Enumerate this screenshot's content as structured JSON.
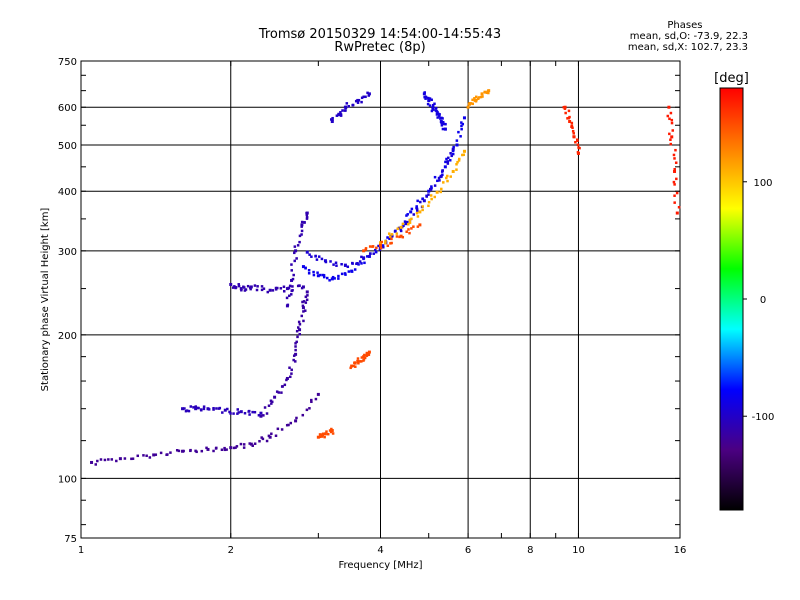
{
  "title": {
    "line1": "Tromsø 20150329 14:54:00-14:55:43",
    "line2": "RwPretec (8p)"
  },
  "phases": {
    "header": "Phases",
    "line_o": "mean, sd,O: -73.9, 22.3",
    "line_x": "mean, sd,X: 102.7, 23.3"
  },
  "chart_data": {
    "type": "scatter",
    "xlabel": "Frequency [MHz]",
    "ylabel": "Stationary phase Virtual Height [km]",
    "xscale": "log",
    "yscale": "log",
    "xlim": [
      1,
      16
    ],
    "ylim": [
      75,
      750
    ],
    "x_ticks": [
      1,
      2,
      4,
      6,
      8,
      10,
      16
    ],
    "y_ticks": [
      75,
      100,
      200,
      300,
      400,
      500,
      600,
      750
    ],
    "grid_x": [
      2,
      4,
      6,
      8,
      10
    ],
    "grid_y": [
      100,
      200,
      300,
      400,
      500,
      600
    ],
    "grid": true,
    "colorbar": {
      "label": "[deg]",
      "range": [
        -180,
        180
      ],
      "ticks": [
        100,
        0,
        -100
      ],
      "colors": [
        "#000000",
        "#4b0082",
        "#0000ff",
        "#00ffff",
        "#00ff00",
        "#ffff00",
        "#ff8000",
        "#ff0000"
      ]
    },
    "traces": [
      {
        "name": "",
        "phase": -85,
        "x": [
          2.8,
          3.0,
          3.2,
          3.5,
          3.8,
          4.2,
          4.6,
          5.0,
          5.4,
          5.7,
          5.9
        ],
        "y": [
          278,
          266,
          262,
          272,
          292,
          322,
          362,
          400,
          450,
          500,
          570
        ]
      },
      {
        "name": "",
        "phase": -95,
        "x": [
          2.85,
          3.1,
          3.4,
          3.7,
          4.1,
          4.5,
          4.9,
          5.3,
          5.6
        ],
        "y": [
          298,
          286,
          280,
          290,
          312,
          342,
          382,
          430,
          490
        ]
      },
      {
        "name": "",
        "phase": 110,
        "x": [
          4.0,
          4.4,
          4.8,
          5.2,
          5.6,
          5.9
        ],
        "y": [
          312,
          336,
          362,
          398,
          440,
          485
        ]
      },
      {
        "name": "",
        "phase": 150,
        "x": [
          3.7,
          4.0,
          4.4,
          4.8
        ],
        "y": [
          300,
          308,
          322,
          340
        ]
      },
      {
        "name": "",
        "phase": -120,
        "x": [
          1.05,
          1.2,
          1.4,
          1.6,
          1.8,
          2.0,
          2.2,
          2.4,
          2.7,
          3.0
        ],
        "y": [
          108,
          110,
          112,
          114,
          115,
          116,
          118,
          122,
          132,
          150
        ]
      },
      {
        "name": "",
        "phase": -115,
        "x": [
          2.3,
          2.45,
          2.6,
          2.7,
          2.75,
          2.8,
          2.85
        ],
        "y": [
          135,
          148,
          162,
          182,
          205,
          228,
          246
        ]
      },
      {
        "name": "",
        "phase": -110,
        "x": [
          2.0,
          2.1,
          2.2,
          2.4,
          2.6,
          2.8
        ],
        "y": [
          255,
          250,
          252,
          248,
          250,
          252
        ]
      },
      {
        "name": "",
        "phase": -110,
        "x": [
          2.6,
          2.65,
          2.7,
          2.78,
          2.85
        ],
        "y": [
          230,
          260,
          300,
          340,
          360
        ]
      },
      {
        "name": "",
        "phase": -105,
        "x": [
          1.6,
          1.7,
          1.8,
          1.95,
          2.1,
          2.3
        ],
        "y": [
          140,
          140,
          140,
          139,
          138,
          137
        ]
      },
      {
        "name": "",
        "phase": 150,
        "x": [
          3.0,
          3.1,
          3.2
        ],
        "y": [
          122,
          124,
          126
        ]
      },
      {
        "name": "",
        "phase": 150,
        "x": [
          3.5,
          3.6,
          3.7,
          3.8
        ],
        "y": [
          172,
          176,
          180,
          184
        ]
      },
      {
        "name": "",
        "phase": -100,
        "x": [
          3.2,
          3.3,
          3.4,
          3.6,
          3.8
        ],
        "y": [
          560,
          580,
          600,
          620,
          640
        ]
      },
      {
        "name": "",
        "phase": -90,
        "x": [
          4.9,
          5.0,
          5.1,
          5.2,
          5.3,
          5.4
        ],
        "y": [
          640,
          620,
          600,
          580,
          560,
          540
        ]
      },
      {
        "name": "",
        "phase": 120,
        "x": [
          6.0,
          6.2,
          6.4,
          6.6
        ],
        "y": [
          600,
          620,
          640,
          650
        ]
      },
      {
        "name": "",
        "phase": 165,
        "x": [
          9.4,
          9.6,
          9.8,
          10.0
        ],
        "y": [
          600,
          560,
          520,
          480
        ]
      },
      {
        "name": "",
        "phase": 170,
        "x": [
          15.2,
          15.4,
          15.6,
          15.8
        ],
        "y": [
          600,
          520,
          440,
          360
        ]
      }
    ]
  }
}
